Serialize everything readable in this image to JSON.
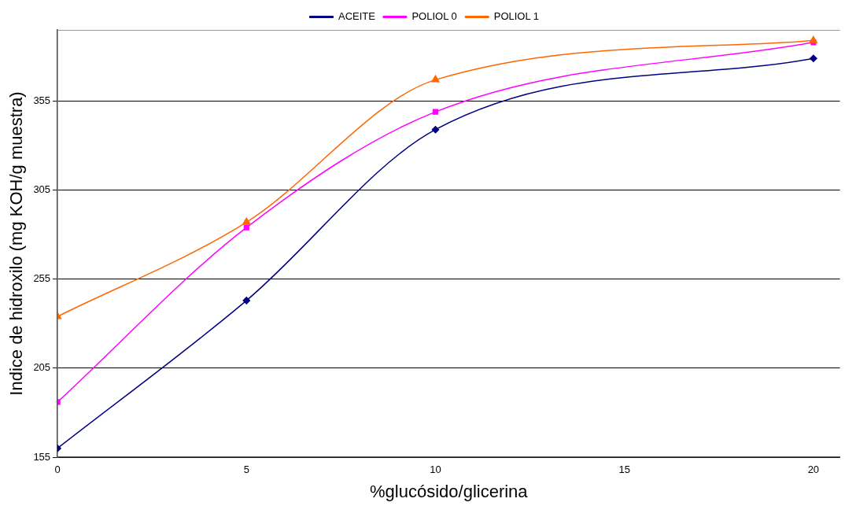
{
  "chart_data": {
    "type": "line",
    "xlabel": "%glucósido/glicerina",
    "ylabel": "Indice de hidroxilo (mg KOH/g muestra)",
    "x": [
      0,
      5,
      10,
      20
    ],
    "series": [
      {
        "name": "ACEITE",
        "color": "#000080",
        "values": [
          160,
          243,
          339,
          379
        ],
        "marker": "diamond"
      },
      {
        "name": "POLIOL 0",
        "color": "#ff00ff",
        "values": [
          186,
          284,
          349,
          388
        ],
        "marker": "square"
      },
      {
        "name": "POLIOL 1",
        "color": "#ff6600",
        "values": [
          234,
          287,
          367,
          389
        ],
        "marker": "triangle"
      }
    ],
    "xlim": [
      0,
      20.7
    ],
    "xticks": [
      0,
      5,
      10,
      15,
      20
    ],
    "ylim": [
      155,
      395
    ],
    "yticks": [
      155,
      205,
      255,
      305,
      355
    ],
    "grid": "y",
    "legend": "top",
    "line_style": "solid"
  }
}
